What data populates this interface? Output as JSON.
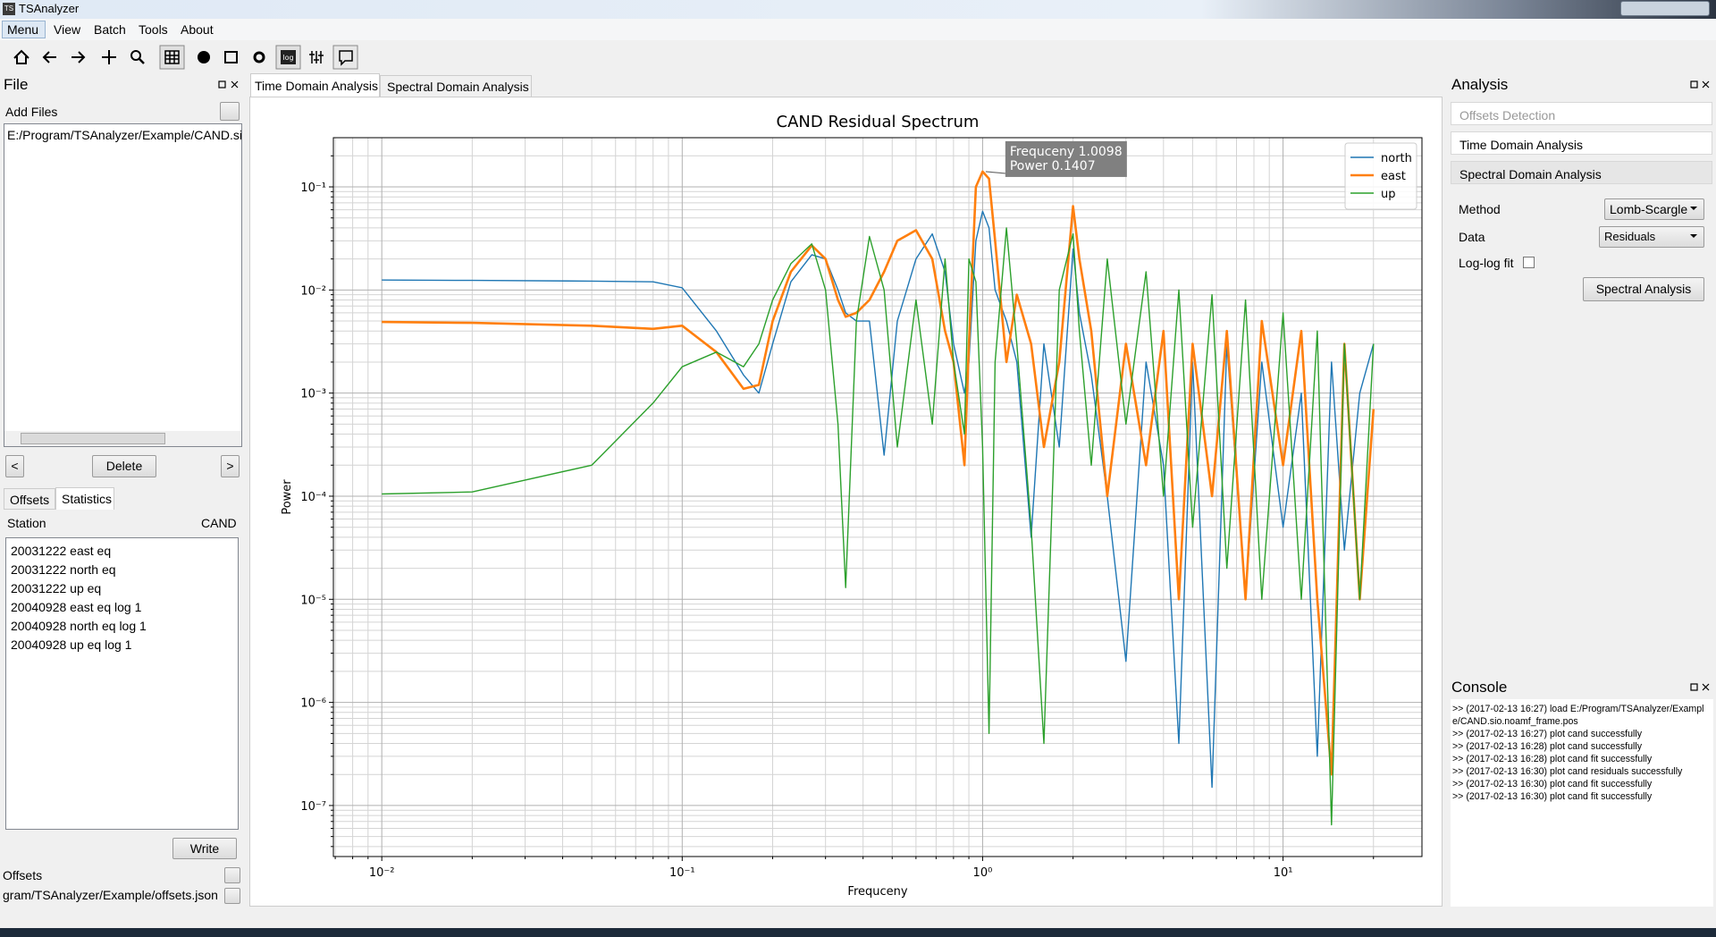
{
  "window": {
    "icon": "TS",
    "title": "TSAnalyzer"
  },
  "menu": [
    "Menu",
    "View",
    "Batch",
    "Tools",
    "About"
  ],
  "toolbar": {
    "log": "log"
  },
  "file_panel": {
    "title": "File",
    "add_files": "Add Files",
    "files": [
      "E:/Program/TSAnalyzer/Example/CAND.sic"
    ],
    "prev": "<",
    "delete": "Delete",
    "next": ">"
  },
  "offsets_panel": {
    "tabs": [
      "Offsets",
      "Statistics"
    ],
    "station_label": "Station",
    "station": "CAND",
    "items": [
      "20031222 east eq",
      "20031222 north eq",
      "20031222 up eq",
      "20040928 east eq log 1",
      "20040928 north eq log 1",
      "20040928 up eq log 1"
    ],
    "write": "Write",
    "offsets_label": "Offsets",
    "offsets_file": "gram/TSAnalyzer/Example/offsets.json"
  },
  "tabs": [
    "Time Domain Analysis",
    "Spectral Domain Analysis"
  ],
  "chart_data": {
    "type": "line",
    "title": "CAND Residual Spectrum",
    "xlabel": "Frequceny",
    "ylabel": "Power",
    "xscale": "log",
    "yscale": "log",
    "grid": true,
    "legend": "upper right",
    "xlim": [
      0.0069,
      29
    ],
    "ylim": [
      3.2e-08,
      0.3
    ],
    "xticks": [
      {
        "value": 0.01,
        "label": "10⁻²"
      },
      {
        "value": 0.1,
        "label": "10⁻¹"
      },
      {
        "value": 1,
        "label": "10⁰"
      },
      {
        "value": 10,
        "label": "10¹"
      }
    ],
    "yticks": [
      {
        "value": 1e-07,
        "label": "10⁻⁷"
      },
      {
        "value": 1e-06,
        "label": "10⁻⁶"
      },
      {
        "value": 1e-05,
        "label": "10⁻⁵"
      },
      {
        "value": 0.0001,
        "label": "10⁻⁴"
      },
      {
        "value": 0.001,
        "label": "10⁻³"
      },
      {
        "value": 0.01,
        "label": "10⁻²"
      },
      {
        "value": 0.1,
        "label": "10⁻¹"
      }
    ],
    "xminor": [
      0.007,
      0.008,
      0.009,
      0.02,
      0.03,
      0.04,
      0.05,
      0.06,
      0.07,
      0.08,
      0.09,
      0.2,
      0.3,
      0.4,
      0.5,
      0.6,
      0.7,
      0.8,
      0.9,
      2,
      3,
      4,
      5,
      6,
      7,
      8,
      9,
      20
    ],
    "yminor": [
      4e-08,
      5e-08,
      6e-08,
      7e-08,
      8e-08,
      9e-08,
      2e-07,
      3e-07,
      4e-07,
      5e-07,
      6e-07,
      7e-07,
      8e-07,
      9e-07,
      2e-06,
      3e-06,
      4e-06,
      5e-06,
      6e-06,
      7e-06,
      8e-06,
      9e-06,
      2e-05,
      3e-05,
      4e-05,
      5e-05,
      6e-05,
      7e-05,
      8e-05,
      9e-05,
      0.0002,
      0.0003,
      0.0004,
      0.0005,
      0.0006,
      0.0007,
      0.0008,
      0.0009,
      0.002,
      0.003,
      0.004,
      0.005,
      0.006,
      0.007,
      0.008,
      0.009,
      0.02,
      0.03,
      0.04,
      0.05,
      0.06,
      0.07,
      0.08,
      0.09,
      0.2
    ],
    "x": [
      0.01,
      0.02,
      0.05,
      0.08,
      0.1,
      0.13,
      0.16,
      0.18,
      0.2,
      0.23,
      0.27,
      0.3,
      0.33,
      0.35,
      0.38,
      0.42,
      0.47,
      0.52,
      0.6,
      0.68,
      0.75,
      0.8,
      0.87,
      0.9,
      0.95,
      1.0,
      1.05,
      1.1,
      1.2,
      1.3,
      1.45,
      1.6,
      1.8,
      2.0,
      2.1,
      2.3,
      2.6,
      3.0,
      3.5,
      4.0,
      4.5,
      5.0,
      5.8,
      6.5,
      7.5,
      8.5,
      10,
      11.5,
      13,
      14.5,
      16,
      18,
      20
    ],
    "series": [
      {
        "name": "north",
        "color": "#1f77b4",
        "width": 1.4,
        "values": [
          0.0125,
          0.0124,
          0.0122,
          0.012,
          0.0105,
          0.004,
          0.0015,
          0.001,
          0.003,
          0.012,
          0.022,
          0.02,
          0.01,
          0.006,
          0.005,
          0.005,
          0.00025,
          0.005,
          0.02,
          0.035,
          0.015,
          0.003,
          0.001,
          0.002,
          0.03,
          0.058,
          0.04,
          0.01,
          0.005,
          0.002,
          4e-05,
          0.003,
          0.0003,
          0.025,
          0.006,
          0.0015,
          0.0001,
          2.5e-06,
          0.002,
          0.0002,
          4e-07,
          0.002,
          1.5e-07,
          0.003,
          1e-05,
          0.002,
          5e-05,
          0.001,
          3e-07,
          0.002,
          3e-05,
          0.001,
          0.003
        ]
      },
      {
        "name": "east",
        "color": "#ff7f0e",
        "width": 2.6,
        "values": [
          0.0049,
          0.0048,
          0.0045,
          0.0042,
          0.0045,
          0.0025,
          0.0011,
          0.0012,
          0.005,
          0.015,
          0.027,
          0.02,
          0.008,
          0.0055,
          0.006,
          0.008,
          0.015,
          0.03,
          0.038,
          0.02,
          0.004,
          0.002,
          0.0002,
          0.003,
          0.1,
          0.1407,
          0.12,
          0.03,
          0.002,
          0.009,
          0.003,
          0.0003,
          0.002,
          0.065,
          0.02,
          0.004,
          0.0001,
          0.003,
          0.0002,
          0.004,
          1e-05,
          0.003,
          0.0001,
          0.004,
          1e-05,
          0.005,
          0.0002,
          0.004,
          1e-05,
          2e-07,
          0.003,
          1e-05,
          0.0007
        ]
      },
      {
        "name": "up",
        "color": "#2ca02c",
        "width": 1.4,
        "values": [
          0.000105,
          0.00011,
          0.0002,
          0.0008,
          0.0018,
          0.0025,
          0.0018,
          0.003,
          0.008,
          0.018,
          0.028,
          0.01,
          0.0005,
          1.3e-05,
          0.005,
          0.033,
          0.01,
          0.0003,
          0.008,
          0.0005,
          0.02,
          0.002,
          0.0004,
          0.02,
          0.012,
          0.0003,
          5e-07,
          0.002,
          0.04,
          0.003,
          5e-05,
          4e-07,
          0.01,
          0.035,
          0.004,
          0.0002,
          0.02,
          0.0005,
          0.015,
          0.0001,
          0.01,
          5e-05,
          0.009,
          2e-05,
          0.008,
          1e-05,
          0.006,
          1e-05,
          0.004,
          6.5e-08,
          0.003,
          1e-05,
          0.003
        ]
      }
    ],
    "annotation": {
      "text": [
        "Frequceny 1.0098",
        "Power 0.1407"
      ],
      "x": 1.0098,
      "y": 0.1407
    }
  },
  "analysis_panel": {
    "title": "Analysis",
    "sections": [
      "Offsets Detection",
      "Time Domain Analysis",
      "Spectral Domain Analysis"
    ],
    "method_label": "Method",
    "method": "Lomb-Scargle",
    "data_label": "Data",
    "data": "Residuals",
    "loglog_label": "Log-log fit",
    "button": "Spectral Analysis"
  },
  "console": {
    "title": "Console",
    "lines": [
      ">> (2017-02-13 16:27) load E:/Program/TSAnalyzer/Example/CAND.sio.noamf_frame.pos",
      ">> (2017-02-13 16:27) plot cand successfully",
      ">> (2017-02-13 16:28) plot cand successfully",
      ">> (2017-02-13 16:28) plot cand fit successfully",
      ">> (2017-02-13 16:30) plot cand residuals successfully",
      ">> (2017-02-13 16:30) plot cand fit successfully",
      ">> (2017-02-13 16:30) plot cand fit successfully"
    ]
  }
}
